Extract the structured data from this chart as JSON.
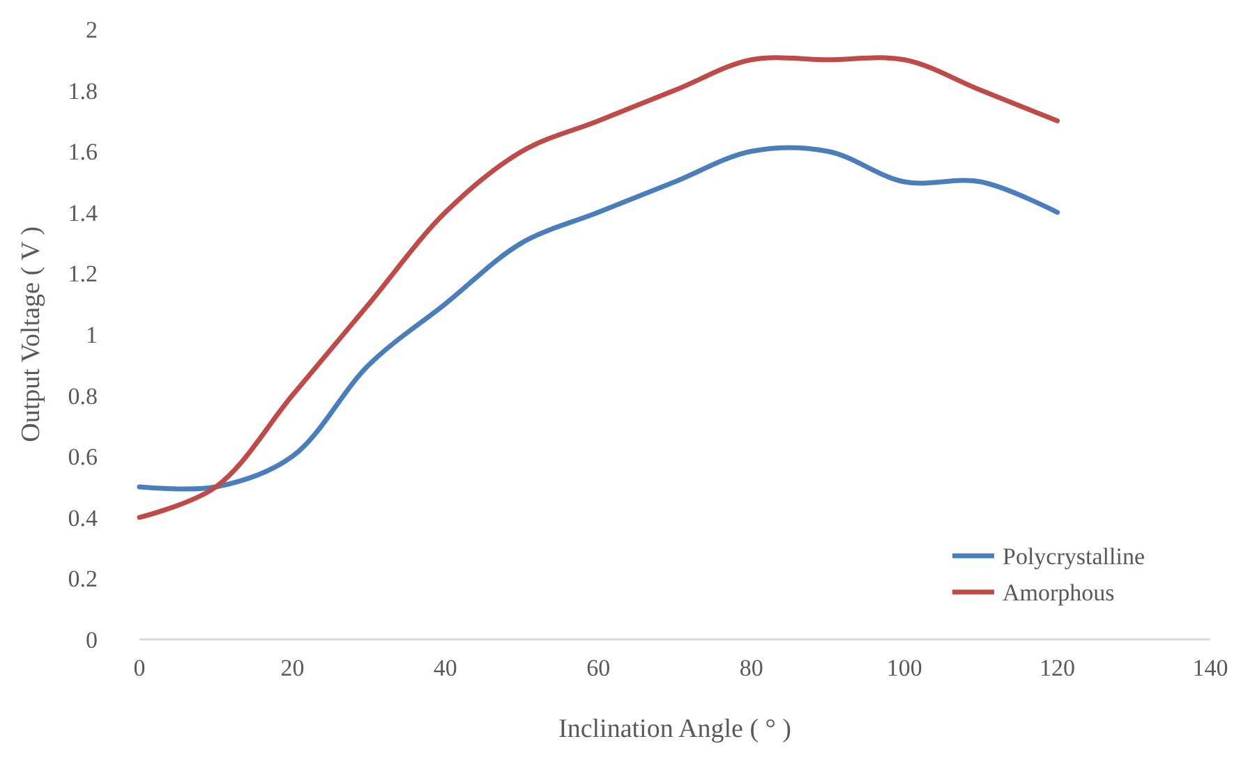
{
  "chart_data": {
    "type": "line",
    "xlabel": "Inclination Angle ( ° )",
    "ylabel": "Output Voltage ( V )",
    "x": [
      0,
      10,
      20,
      30,
      40,
      50,
      60,
      70,
      80,
      90,
      100,
      110,
      120
    ],
    "series": [
      {
        "name": "Polycrystalline",
        "color": "#4a7ebb",
        "values": [
          0.5,
          0.5,
          0.6,
          0.9,
          1.1,
          1.3,
          1.4,
          1.5,
          1.6,
          1.6,
          1.5,
          1.5,
          1.4
        ]
      },
      {
        "name": "Amorphous",
        "color": "#be4b48",
        "values": [
          0.4,
          0.5,
          0.8,
          1.1,
          1.4,
          1.6,
          1.7,
          1.8,
          1.9,
          1.9,
          1.9,
          1.8,
          1.7
        ]
      }
    ],
    "xlim": [
      0,
      140
    ],
    "xticks": [
      0,
      20,
      40,
      60,
      80,
      100,
      120,
      140
    ],
    "ylim": [
      0,
      2
    ],
    "yticks": [
      0,
      0.2,
      0.4,
      0.6,
      0.8,
      1,
      1.2,
      1.4,
      1.6,
      1.8,
      2
    ],
    "grid": false,
    "legend": "bottom right",
    "marker": "none",
    "line_style": "solid"
  }
}
